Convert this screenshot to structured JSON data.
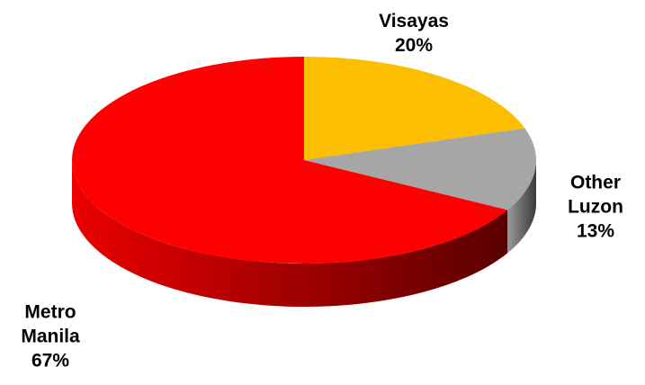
{
  "chart_data": {
    "type": "pie",
    "categories": [
      "Visayas",
      "Other Luzon",
      "Metro Manila"
    ],
    "values": [
      20,
      13,
      67
    ],
    "value_labels": [
      "20%",
      "13%",
      "67%"
    ],
    "colors": [
      "#fbbe00",
      "#a6a6a6",
      "#ff0000"
    ]
  }
}
